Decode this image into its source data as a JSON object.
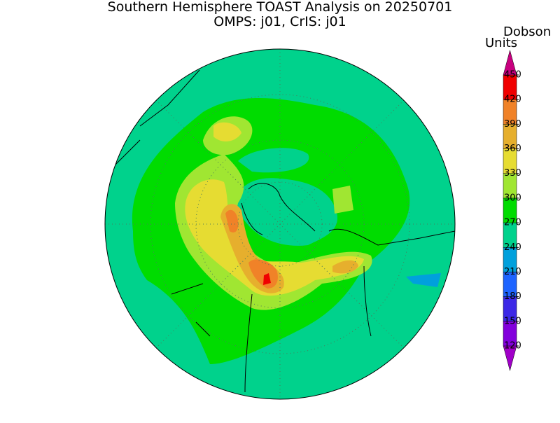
{
  "header": {
    "title": "Southern Hemisphere TOAST Analysis on 20250701",
    "subtitle": "OMPS: j01, CrIS: j01"
  },
  "colorbar": {
    "label": [
      "Dobson",
      "Units"
    ],
    "ticks": [
      120,
      150,
      180,
      210,
      240,
      270,
      300,
      330,
      360,
      390,
      420,
      450
    ],
    "colors": [
      "#a000c8",
      "#8200dc",
      "#3c28e6",
      "#1e64ff",
      "#00a0dc",
      "#00d28c",
      "#00dc00",
      "#a0e632",
      "#e6dc32",
      "#e6af2d",
      "#f08228",
      "#f00000",
      "#c8007f"
    ]
  }
}
